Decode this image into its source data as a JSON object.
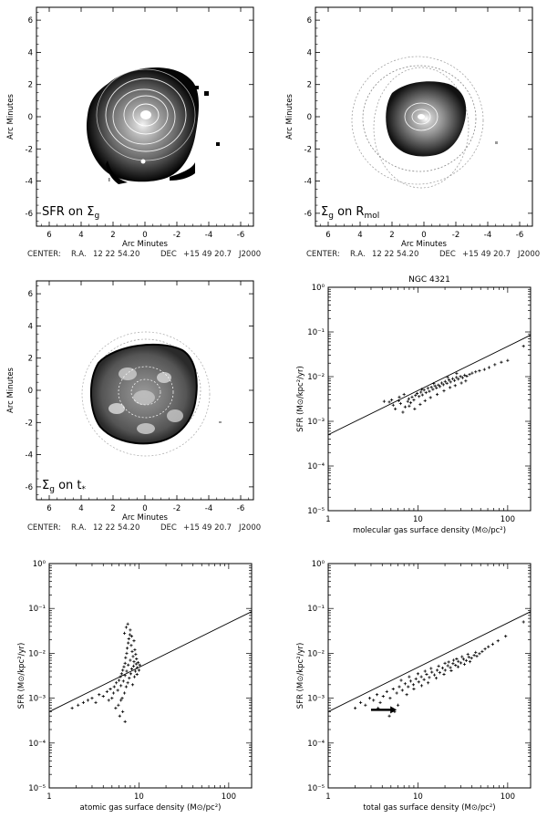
{
  "chart_data": [
    {
      "type": "heatmap",
      "panel": "top-left",
      "inset_label": "SFR on Σg",
      "inset_main": "SFR on Σ",
      "inset_sub": "g",
      "xlabel": "Arc Minutes",
      "ylabel": "Arc Minutes",
      "x_ticks": [
        "6",
        "4",
        "2",
        "0",
        "-2",
        "-4",
        "-6"
      ],
      "y_ticks": [
        "6",
        "4",
        "2",
        "0",
        "-2",
        "-4",
        "-6"
      ],
      "xlim": [
        6.8,
        -6.8
      ],
      "ylim": [
        -6.8,
        6.8
      ],
      "center": {
        "prefix": "CENTER:",
        "ra_label": "R.A.",
        "ra": "12 22 54.20",
        "dec_label": "DEC",
        "dec": "+15 49 20.7",
        "epoch": "J2000"
      }
    },
    {
      "type": "heatmap",
      "panel": "top-right",
      "inset_label": "Σg on Rmol",
      "inset_main": "Σ",
      "inset_mid": "g",
      "inset_on": " on R",
      "inset_sub": "mol",
      "xlabel": "Arc Minutes",
      "ylabel": "Arc Minutes",
      "x_ticks": [
        "6",
        "4",
        "2",
        "0",
        "-2",
        "-4",
        "-6"
      ],
      "y_ticks": [
        "6",
        "4",
        "2",
        "0",
        "-2",
        "-4",
        "-6"
      ],
      "xlim": [
        6.8,
        -6.8
      ],
      "ylim": [
        -6.8,
        6.8
      ],
      "center": {
        "prefix": "CENTER:",
        "ra_label": "R.A.",
        "ra": "12 22 54.20",
        "dec_label": "DEC",
        "dec": "+15 49 20.7",
        "epoch": "J2000"
      }
    },
    {
      "type": "heatmap",
      "panel": "middle-left",
      "inset_label": "Σg on t*",
      "inset_main": "Σ",
      "inset_mid": "g",
      "inset_on": " on t",
      "inset_sub": "*",
      "xlabel": "Arc Minutes",
      "ylabel": "Arc Minutes",
      "x_ticks": [
        "6",
        "4",
        "2",
        "0",
        "-2",
        "-4",
        "-6"
      ],
      "y_ticks": [
        "6",
        "4",
        "2",
        "0",
        "-2",
        "-4",
        "-6"
      ],
      "xlim": [
        6.8,
        -6.8
      ],
      "ylim": [
        -6.8,
        6.8
      ],
      "center": {
        "prefix": "CENTER:",
        "ra_label": "R.A.",
        "ra": "12 22 54.20",
        "dec_label": "DEC",
        "dec": "+15 49 20.7",
        "epoch": "J2000"
      }
    },
    {
      "type": "scatter",
      "panel": "middle-right",
      "title": "NGC 4321",
      "xlabel": "molecular gas surface density (M⊙/pc²)",
      "ylabel": "SFR (M⊙/kpc²/yr)",
      "x_scale": "log",
      "y_scale": "log",
      "xlim": [
        1,
        180
      ],
      "ylim": [
        1e-05,
        1
      ],
      "x_tick_labels": [
        "1",
        "10",
        "100"
      ],
      "y_tick_labels": [
        "10⁰",
        "10⁻¹",
        "10⁻²",
        "10⁻³",
        "10⁻⁴",
        "10⁻⁵"
      ],
      "line": {
        "x": [
          1,
          180
        ],
        "y": [
          0.0005,
          0.085
        ]
      },
      "points": [
        [
          4.2,
          0.0028
        ],
        [
          4.8,
          0.0027
        ],
        [
          5.3,
          0.0023
        ],
        [
          5.6,
          0.0019
        ],
        [
          6.1,
          0.0029
        ],
        [
          6.4,
          0.0025
        ],
        [
          6.8,
          0.0016
        ],
        [
          7.2,
          0.0021
        ],
        [
          7.7,
          0.0028
        ],
        [
          7.9,
          0.0032
        ],
        [
          8.3,
          0.0026
        ],
        [
          8.6,
          0.0035
        ],
        [
          9.0,
          0.003
        ],
        [
          9.4,
          0.0038
        ],
        [
          9.8,
          0.0042
        ],
        [
          10.3,
          0.0036
        ],
        [
          10.8,
          0.0045
        ],
        [
          11.2,
          0.0039
        ],
        [
          11.7,
          0.005
        ],
        [
          12.3,
          0.0044
        ],
        [
          12.9,
          0.0055
        ],
        [
          13.4,
          0.0047
        ],
        [
          14.1,
          0.0058
        ],
        [
          14.7,
          0.0052
        ],
        [
          15.5,
          0.0062
        ],
        [
          16.1,
          0.0056
        ],
        [
          16.9,
          0.0065
        ],
        [
          17.6,
          0.006
        ],
        [
          18.4,
          0.0072
        ],
        [
          19.2,
          0.0066
        ],
        [
          20.1,
          0.0078
        ],
        [
          21.0,
          0.0071
        ],
        [
          22.2,
          0.0084
        ],
        [
          23.1,
          0.0076
        ],
        [
          24.4,
          0.009
        ],
        [
          25.6,
          0.0082
        ],
        [
          26.9,
          0.0096
        ],
        [
          28.2,
          0.0088
        ],
        [
          29.8,
          0.0101
        ],
        [
          31.5,
          0.0095
        ],
        [
          33.2,
          0.0108
        ],
        [
          35.0,
          0.0102
        ],
        [
          37.6,
          0.0112
        ],
        [
          40.2,
          0.012
        ],
        [
          44.0,
          0.0128
        ],
        [
          48.5,
          0.0135
        ],
        [
          55.0,
          0.0145
        ],
        [
          62.0,
          0.016
        ],
        [
          72.0,
          0.0185
        ],
        [
          85.0,
          0.021
        ],
        [
          100.0,
          0.023
        ],
        [
          150.0,
          0.048
        ],
        [
          8.0,
          0.0022
        ],
        [
          9.2,
          0.0019
        ],
        [
          10.6,
          0.0024
        ],
        [
          12.0,
          0.0029
        ],
        [
          13.8,
          0.0034
        ],
        [
          16.4,
          0.004
        ],
        [
          19.5,
          0.0048
        ],
        [
          22.8,
          0.0057
        ],
        [
          26.0,
          0.0063
        ],
        [
          30.5,
          0.0072
        ],
        [
          34.1,
          0.008
        ],
        [
          6.2,
          0.0035
        ],
        [
          11.0,
          0.0052
        ],
        [
          15.0,
          0.007
        ],
        [
          21.5,
          0.0096
        ],
        [
          27.0,
          0.0118
        ],
        [
          5.1,
          0.003
        ],
        [
          7.0,
          0.004
        ]
      ]
    },
    {
      "type": "scatter",
      "panel": "bottom-left",
      "xlabel": "atomic gas surface density (M⊙/pc²)",
      "ylabel": "SFR (M⊙/kpc²/yr)",
      "x_scale": "log",
      "y_scale": "log",
      "xlim": [
        1,
        180
      ],
      "ylim": [
        1e-05,
        1
      ],
      "x_tick_labels": [
        "1",
        "10",
        "100"
      ],
      "y_tick_labels": [
        "10⁰",
        "10⁻¹",
        "10⁻²",
        "10⁻³",
        "10⁻⁴",
        "10⁻⁵"
      ],
      "line": {
        "x": [
          1,
          180
        ],
        "y": [
          0.0005,
          0.085
        ]
      },
      "points": [
        [
          1.8,
          0.0006
        ],
        [
          2.1,
          0.0007
        ],
        [
          2.4,
          0.0008
        ],
        [
          2.7,
          0.0009
        ],
        [
          3.0,
          0.001
        ],
        [
          3.3,
          0.0008
        ],
        [
          3.6,
          0.0012
        ],
        [
          4.0,
          0.0011
        ],
        [
          4.4,
          0.0014
        ],
        [
          4.8,
          0.0016
        ],
        [
          5.0,
          0.001
        ],
        [
          5.3,
          0.0018
        ],
        [
          5.5,
          0.0006
        ],
        [
          5.6,
          0.0022
        ],
        [
          5.8,
          0.0015
        ],
        [
          6.0,
          0.0025
        ],
        [
          6.1,
          0.0004
        ],
        [
          6.2,
          0.003
        ],
        [
          6.3,
          0.0019
        ],
        [
          6.4,
          0.0035
        ],
        [
          6.5,
          0.001
        ],
        [
          6.6,
          0.0042
        ],
        [
          6.7,
          0.0024
        ],
        [
          6.8,
          0.005
        ],
        [
          6.9,
          0.0013
        ],
        [
          7.0,
          0.006
        ],
        [
          7.0,
          0.0032
        ],
        [
          7.1,
          0.008
        ],
        [
          7.2,
          0.0018
        ],
        [
          7.3,
          0.01
        ],
        [
          7.3,
          0.004
        ],
        [
          7.4,
          0.013
        ],
        [
          7.5,
          0.0022
        ],
        [
          7.6,
          0.017
        ],
        [
          7.6,
          0.0055
        ],
        [
          7.7,
          0.021
        ],
        [
          7.8,
          0.0028
        ],
        [
          7.9,
          0.026
        ],
        [
          8.0,
          0.007
        ],
        [
          8.0,
          0.033
        ],
        [
          8.1,
          0.0035
        ],
        [
          8.2,
          0.015
        ],
        [
          8.3,
          0.0045
        ],
        [
          8.4,
          0.011
        ],
        [
          8.5,
          0.002
        ],
        [
          8.6,
          0.0085
        ],
        [
          8.7,
          0.0052
        ],
        [
          8.8,
          0.0065
        ],
        [
          8.9,
          0.003
        ],
        [
          9.0,
          0.012
        ],
        [
          9.1,
          0.004
        ],
        [
          9.2,
          0.0095
        ],
        [
          9.3,
          0.0058
        ],
        [
          9.4,
          0.0075
        ],
        [
          9.5,
          0.0034
        ],
        [
          9.6,
          0.0048
        ],
        [
          9.8,
          0.0062
        ],
        [
          10.0,
          0.0042
        ],
        [
          10.2,
          0.0055
        ],
        [
          7.2,
          0.038
        ],
        [
          7.5,
          0.045
        ],
        [
          6.9,
          0.028
        ],
        [
          8.3,
          0.024
        ],
        [
          8.8,
          0.019
        ],
        [
          6.3,
          0.0009
        ],
        [
          5.9,
          0.0007
        ],
        [
          6.6,
          0.0005
        ],
        [
          7.0,
          0.0003
        ],
        [
          4.6,
          0.0009
        ],
        [
          5.2,
          0.0013
        ]
      ]
    },
    {
      "type": "scatter",
      "panel": "bottom-right",
      "xlabel": "total gas surface density (M⊙/pc²)",
      "ylabel": "SFR (M⊙/kpc²/yr)",
      "x_scale": "log",
      "y_scale": "log",
      "xlim": [
        1,
        180
      ],
      "ylim": [
        1e-05,
        1
      ],
      "x_tick_labels": [
        "1",
        "10",
        "100"
      ],
      "y_tick_labels": [
        "10⁰",
        "10⁻¹",
        "10⁻²",
        "10⁻³",
        "10⁻⁴",
        "10⁻⁵"
      ],
      "line": {
        "x": [
          1,
          180
        ],
        "y": [
          0.0005,
          0.085
        ]
      },
      "arrow": {
        "from": [
          3.0,
          0.00055
        ],
        "to": [
          5.8,
          0.00055
        ]
      },
      "points": [
        [
          2.0,
          0.0006
        ],
        [
          2.3,
          0.0008
        ],
        [
          2.6,
          0.0007
        ],
        [
          2.9,
          0.001
        ],
        [
          3.2,
          0.0009
        ],
        [
          3.5,
          0.0012
        ],
        [
          3.8,
          0.0008
        ],
        [
          4.1,
          0.0011
        ],
        [
          4.5,
          0.0014
        ],
        [
          4.9,
          0.001
        ],
        [
          5.3,
          0.0016
        ],
        [
          5.8,
          0.0013
        ],
        [
          6.2,
          0.0018
        ],
        [
          6.7,
          0.0015
        ],
        [
          7.2,
          0.0021
        ],
        [
          7.8,
          0.0018
        ],
        [
          8.3,
          0.0024
        ],
        [
          8.9,
          0.002
        ],
        [
          9.5,
          0.0027
        ],
        [
          10.2,
          0.0023
        ],
        [
          10.9,
          0.003
        ],
        [
          11.7,
          0.0026
        ],
        [
          12.5,
          0.0034
        ],
        [
          13.4,
          0.0029
        ],
        [
          14.3,
          0.0038
        ],
        [
          15.3,
          0.0033
        ],
        [
          16.4,
          0.0042
        ],
        [
          17.5,
          0.0037
        ],
        [
          18.8,
          0.0047
        ],
        [
          20.1,
          0.0042
        ],
        [
          21.5,
          0.0053
        ],
        [
          23.0,
          0.0048
        ],
        [
          24.6,
          0.0059
        ],
        [
          26.3,
          0.0054
        ],
        [
          28.2,
          0.0066
        ],
        [
          30.1,
          0.0061
        ],
        [
          32.2,
          0.0074
        ],
        [
          34.5,
          0.0069
        ],
        [
          36.9,
          0.0082
        ],
        [
          39.5,
          0.0078
        ],
        [
          42.3,
          0.009
        ],
        [
          45.3,
          0.0086
        ],
        [
          48.5,
          0.0098
        ],
        [
          52.0,
          0.011
        ],
        [
          56.0,
          0.0125
        ],
        [
          61.0,
          0.014
        ],
        [
          68.0,
          0.016
        ],
        [
          78.0,
          0.019
        ],
        [
          95.0,
          0.024
        ],
        [
          150.0,
          0.05
        ],
        [
          5.5,
          0.0005
        ],
        [
          4.8,
          0.0004
        ],
        [
          6.0,
          0.0007
        ],
        [
          7.5,
          0.0012
        ],
        [
          9.0,
          0.0016
        ],
        [
          11.0,
          0.0019
        ],
        [
          13.0,
          0.0022
        ],
        [
          16.0,
          0.0028
        ],
        [
          19.5,
          0.0034
        ],
        [
          23.5,
          0.0041
        ],
        [
          28.0,
          0.005
        ],
        [
          33.0,
          0.0057
        ],
        [
          38.0,
          0.0065
        ],
        [
          8.0,
          0.003
        ],
        [
          12.0,
          0.004
        ],
        [
          17.0,
          0.0052
        ],
        [
          22.0,
          0.0064
        ],
        [
          27.0,
          0.0075
        ],
        [
          3.6,
          0.0006
        ],
        [
          6.5,
          0.0025
        ],
        [
          10.0,
          0.0035
        ],
        [
          14.0,
          0.0046
        ],
        [
          20.0,
          0.006
        ],
        [
          25.0,
          0.007
        ],
        [
          31.0,
          0.0084
        ],
        [
          36.0,
          0.0095
        ],
        [
          44.0,
          0.0105
        ]
      ]
    }
  ]
}
